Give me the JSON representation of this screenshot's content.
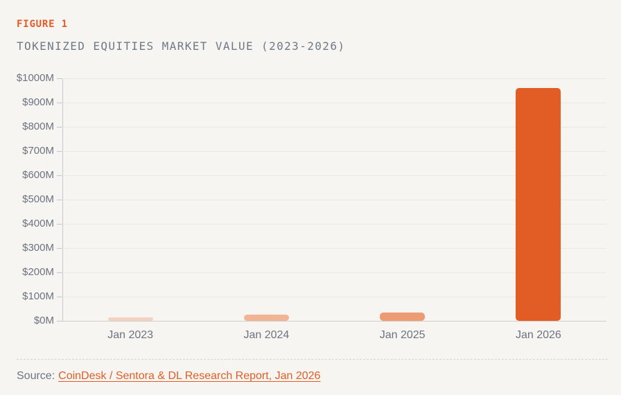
{
  "page": {
    "background_color": "#f7f5f1",
    "accent_color": "#e25c26"
  },
  "header": {
    "figure_label": "FIGURE 1",
    "title": "TOKENIZED EQUITIES MARKET VALUE (2023-2026)"
  },
  "chart_data": {
    "type": "bar",
    "title": "TOKENIZED EQUITIES MARKET VALUE (2023-2026)",
    "categories": [
      "Jan 2023",
      "Jan 2024",
      "Jan 2025",
      "Jan 2026"
    ],
    "values": [
      15,
      25,
      35,
      960
    ],
    "unit": "USD millions",
    "ylim": [
      0,
      1000
    ],
    "y_tick_step": 100,
    "y_tick_labels": [
      "$1000M",
      "$900M",
      "$800M",
      "$700M",
      "$600M",
      "$500M",
      "$400M",
      "$300M",
      "$200M",
      "$100M",
      "$0M"
    ],
    "bar_colors": [
      "#f4d2c1",
      "#f1b596",
      "#ec9b73",
      "#e25c26"
    ],
    "grid": true,
    "legend": false,
    "gridline_color": "#eae8e4",
    "axis_color": "#c4c7cd",
    "baseline_color": "#cfcecb",
    "label_color": "#6c7380"
  },
  "footer": {
    "source_label": "Source:",
    "source_link_text": "CoinDesk / Sentora & DL Research Report, Jan 2026"
  }
}
